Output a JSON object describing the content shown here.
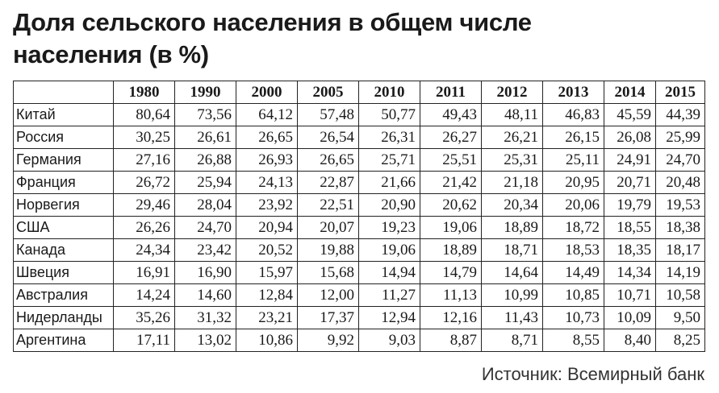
{
  "title_lines": [
    "Доля сельского населения в общем числе",
    "населения (в %)"
  ],
  "table": {
    "header": [
      "1980",
      "1990",
      "2000",
      "2005",
      "2010",
      "2011",
      "2012",
      "2013",
      "2014",
      "2015"
    ],
    "rows": [
      [
        "Китай",
        "80,64",
        "73,56",
        "64,12",
        "57,48",
        "50,77",
        "49,43",
        "48,11",
        "46,83",
        "45,59",
        "44,39"
      ],
      [
        "Россия",
        "30,25",
        "26,61",
        "26,65",
        "26,54",
        "26,31",
        "26,27",
        "26,21",
        "26,15",
        "26,08",
        "25,99"
      ],
      [
        "Германия",
        "27,16",
        "26,88",
        "26,93",
        "26,65",
        "25,71",
        "25,51",
        "25,31",
        "25,11",
        "24,91",
        "24,70"
      ],
      [
        "Франция",
        "26,72",
        "25,94",
        "24,13",
        "22,87",
        "21,66",
        "21,42",
        "21,18",
        "20,95",
        "20,71",
        "20,48"
      ],
      [
        "Норвегия",
        "29,46",
        "28,04",
        "23,92",
        "22,51",
        "20,90",
        "20,62",
        "20,34",
        "20,06",
        "19,79",
        "19,53"
      ],
      [
        "США",
        "26,26",
        "24,70",
        "20,94",
        "20,07",
        "19,23",
        "19,06",
        "18,89",
        "18,72",
        "18,55",
        "18,38"
      ],
      [
        "Канада",
        "24,34",
        "23,42",
        "20,52",
        "19,88",
        "19,06",
        "18,89",
        "18,71",
        "18,53",
        "18,35",
        "18,17"
      ],
      [
        "Швеция",
        "16,91",
        "16,90",
        "15,97",
        "15,68",
        "14,94",
        "14,79",
        "14,64",
        "14,49",
        "14,34",
        "14,19"
      ],
      [
        "Австралия",
        "14,24",
        "14,60",
        "12,84",
        "12,00",
        "11,27",
        "11,13",
        "10,99",
        "10,85",
        "10,71",
        "10,58"
      ],
      [
        "Нидерланды",
        "35,26",
        "31,32",
        "23,21",
        "17,37",
        "12,94",
        "12,16",
        "11,43",
        "10,73",
        "10,09",
        "9,50"
      ],
      [
        "Аргентина",
        "17,11",
        "13,02",
        "10,86",
        "9,92",
        "9,03",
        "8,87",
        "8,71",
        "8,55",
        "8,40",
        "8,25"
      ]
    ]
  },
  "source": "Источник: Всемирный банк"
}
